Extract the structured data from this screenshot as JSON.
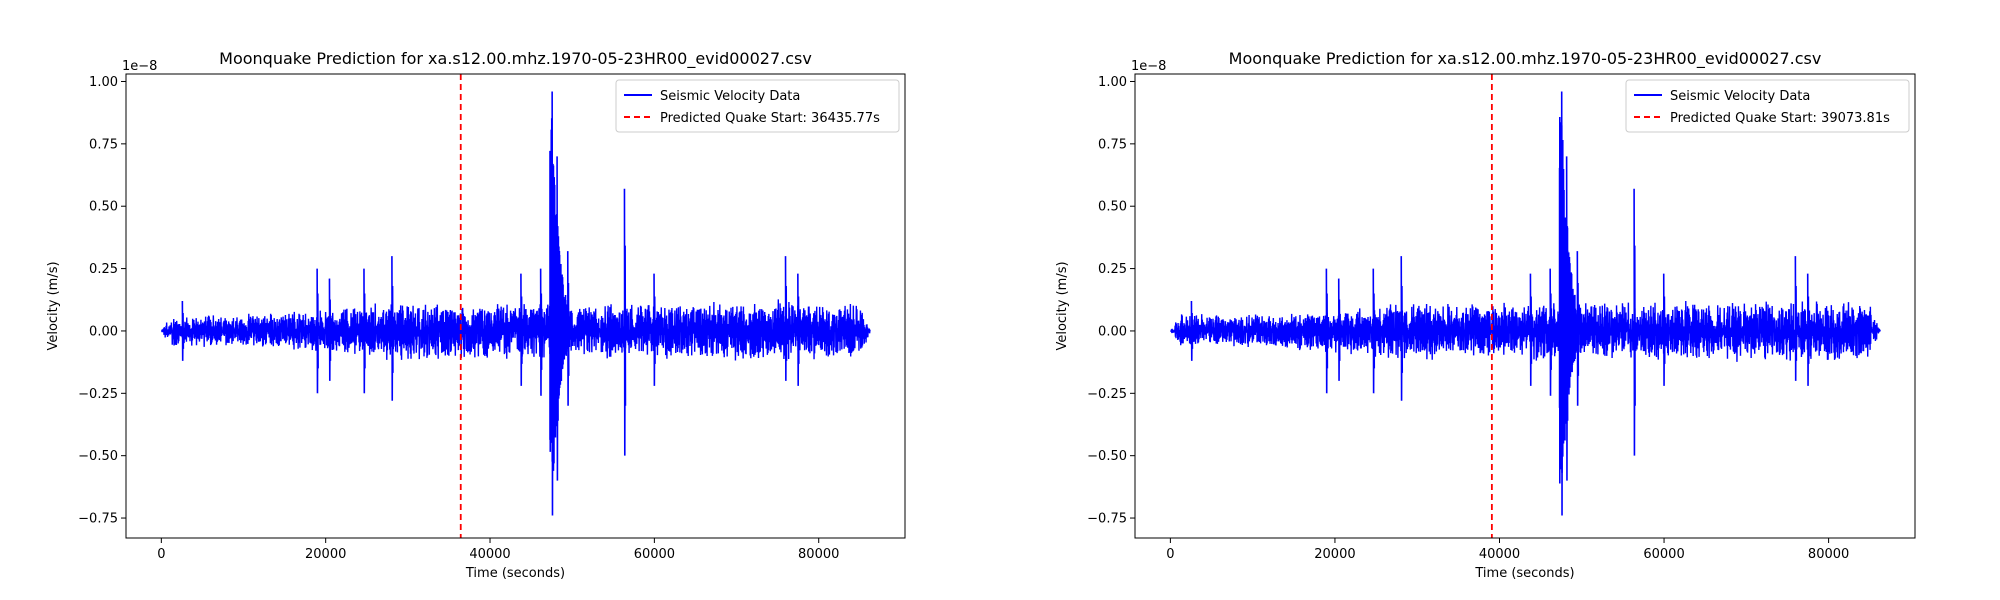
{
  "chart_data": [
    {
      "type": "line",
      "title": "Moonquake Prediction for xa.s12.00.mhz.1970-05-23HR00_evid00027.csv",
      "xlabel": "Time (seconds)",
      "ylabel": "Velocity (m/s)",
      "y_offset_text": "1e−8",
      "xlim": [
        -4300,
        90500
      ],
      "ylim": [
        -0.83,
        1.03
      ],
      "y_scale": 1e-08,
      "x_ticks": [
        0,
        20000,
        40000,
        60000,
        80000
      ],
      "x_tick_labels": [
        "0",
        "20000",
        "40000",
        "60000",
        "80000"
      ],
      "y_ticks": [
        -0.75,
        -0.5,
        -0.25,
        0.0,
        0.25,
        0.5,
        0.75,
        1.0
      ],
      "y_tick_labels": [
        "−0.75",
        "−0.50",
        "−0.25",
        "0.00",
        "0.25",
        "0.50",
        "0.75",
        "1.00"
      ],
      "grid": false,
      "legend_position": "top-right",
      "series": [
        {
          "name": "Seismic Velocity Data",
          "color": "#0000ff",
          "style": "solid",
          "x_range": [
            0,
            86300
          ],
          "noise_envelope": [
            [
              0,
              0.0
            ],
            [
              1000,
              0.07
            ],
            [
              10000,
              0.07
            ],
            [
              20000,
              0.09
            ],
            [
              28000,
              0.13
            ],
            [
              36000,
              0.12
            ],
            [
              46000,
              0.12
            ],
            [
              60000,
              0.12
            ],
            [
              75000,
              0.13
            ],
            [
              85000,
              0.12
            ],
            [
              86300,
              0.0
            ]
          ],
          "spikes": [
            {
              "x": 2600,
              "max": 0.12,
              "min": -0.12
            },
            {
              "x": 19000,
              "max": 0.25,
              "min": -0.25
            },
            {
              "x": 20500,
              "max": 0.21,
              "min": -0.2
            },
            {
              "x": 24700,
              "max": 0.25,
              "min": -0.25
            },
            {
              "x": 28100,
              "max": 0.3,
              "min": -0.28
            },
            {
              "x": 43800,
              "max": 0.23,
              "min": -0.22
            },
            {
              "x": 46200,
              "max": 0.25,
              "min": -0.26
            },
            {
              "x": 47600,
              "max": 0.96,
              "min": -0.74
            },
            {
              "x": 48200,
              "max": 0.7,
              "min": -0.6
            },
            {
              "x": 49500,
              "max": 0.32,
              "min": -0.3
            },
            {
              "x": 56400,
              "max": 0.57,
              "min": -0.5
            },
            {
              "x": 60000,
              "max": 0.23,
              "min": -0.22
            },
            {
              "x": 76000,
              "max": 0.3,
              "min": -0.2
            },
            {
              "x": 77500,
              "max": 0.23,
              "min": -0.22
            }
          ]
        },
        {
          "name": "Predicted Quake Start: 36435.77s",
          "color": "#ff0000",
          "style": "dashed",
          "x": 36435.77
        }
      ]
    },
    {
      "type": "line",
      "title": "Moonquake Prediction for xa.s12.00.mhz.1970-05-23HR00_evid00027.csv",
      "xlabel": "Time (seconds)",
      "ylabel": "Velocity (m/s)",
      "y_offset_text": "1e−8",
      "xlim": [
        -4300,
        90500
      ],
      "ylim": [
        -0.83,
        1.03
      ],
      "y_scale": 1e-08,
      "x_ticks": [
        0,
        20000,
        40000,
        60000,
        80000
      ],
      "x_tick_labels": [
        "0",
        "20000",
        "40000",
        "60000",
        "80000"
      ],
      "y_ticks": [
        -0.75,
        -0.5,
        -0.25,
        0.0,
        0.25,
        0.5,
        0.75,
        1.0
      ],
      "y_tick_labels": [
        "−0.75",
        "−0.50",
        "−0.25",
        "0.00",
        "0.25",
        "0.50",
        "0.75",
        "1.00"
      ],
      "grid": false,
      "legend_position": "top-right",
      "series": [
        {
          "name": "Seismic Velocity Data",
          "color": "#0000ff",
          "style": "solid",
          "x_range": [
            0,
            86300
          ],
          "noise_envelope": [
            [
              0,
              0.0
            ],
            [
              1000,
              0.07
            ],
            [
              10000,
              0.07
            ],
            [
              20000,
              0.09
            ],
            [
              28000,
              0.13
            ],
            [
              36000,
              0.12
            ],
            [
              46000,
              0.12
            ],
            [
              60000,
              0.12
            ],
            [
              75000,
              0.13
            ],
            [
              85000,
              0.12
            ],
            [
              86300,
              0.0
            ]
          ],
          "spikes": [
            {
              "x": 2600,
              "max": 0.12,
              "min": -0.12
            },
            {
              "x": 19000,
              "max": 0.25,
              "min": -0.25
            },
            {
              "x": 20500,
              "max": 0.21,
              "min": -0.2
            },
            {
              "x": 24700,
              "max": 0.25,
              "min": -0.25
            },
            {
              "x": 28100,
              "max": 0.3,
              "min": -0.28
            },
            {
              "x": 43800,
              "max": 0.23,
              "min": -0.22
            },
            {
              "x": 46200,
              "max": 0.25,
              "min": -0.26
            },
            {
              "x": 47600,
              "max": 0.96,
              "min": -0.74
            },
            {
              "x": 48200,
              "max": 0.7,
              "min": -0.6
            },
            {
              "x": 49500,
              "max": 0.32,
              "min": -0.3
            },
            {
              "x": 56400,
              "max": 0.57,
              "min": -0.5
            },
            {
              "x": 60000,
              "max": 0.23,
              "min": -0.22
            },
            {
              "x": 76000,
              "max": 0.3,
              "min": -0.2
            },
            {
              "x": 77500,
              "max": 0.23,
              "min": -0.22
            }
          ]
        },
        {
          "name": "Predicted Quake Start: 39073.81s",
          "color": "#ff0000",
          "style": "dashed",
          "x": 39073.81
        }
      ]
    }
  ]
}
